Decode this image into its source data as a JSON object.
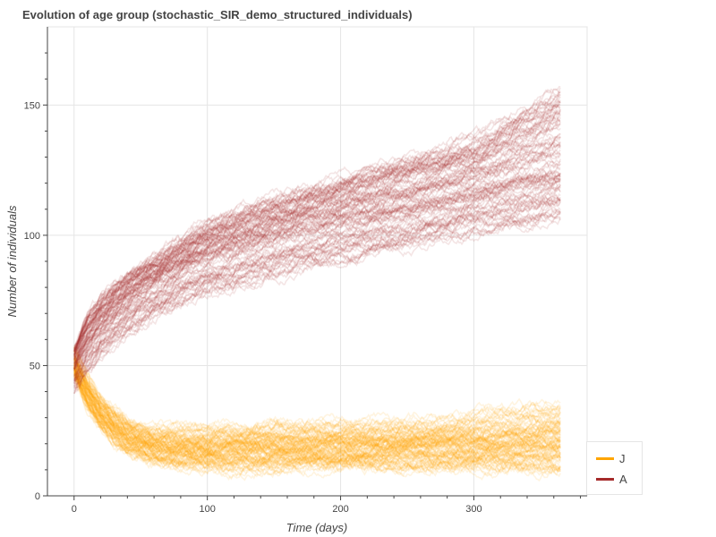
{
  "chart_data": {
    "type": "line",
    "title": "Evolution of age group (stochastic_SIR_demo_structured_individuals)",
    "xlabel": "Time (days)",
    "ylabel": "Number of individuals",
    "xlim": [
      -20,
      385
    ],
    "ylim": [
      0,
      180
    ],
    "xticks": [
      0,
      100,
      200,
      300
    ],
    "yticks": [
      0,
      50,
      100,
      150
    ],
    "grid": true,
    "legend_position": "bottom-right",
    "n_runs_per_series": 100,
    "series": [
      {
        "name": "J",
        "color": "#ffa500",
        "x": [
          0,
          10,
          20,
          30,
          40,
          50,
          60,
          75,
          100,
          150,
          200,
          250,
          300,
          365
        ],
        "y_mean": [
          50,
          40,
          32,
          27,
          23,
          21,
          19.5,
          18.5,
          18,
          18.5,
          19,
          19.5,
          20.5,
          21
        ],
        "y_low": [
          46,
          33,
          25,
          20,
          16,
          14,
          12,
          11,
          10,
          10,
          10,
          10,
          10,
          9
        ],
        "y_high": [
          58,
          47,
          39,
          34,
          30,
          28,
          27,
          27,
          28,
          29,
          30,
          30,
          32,
          38
        ]
      },
      {
        "name": "A",
        "color": "#a52a2a",
        "x": [
          0,
          10,
          20,
          30,
          40,
          50,
          60,
          75,
          100,
          150,
          200,
          250,
          300,
          365
        ],
        "y_mean": [
          50,
          60,
          67,
          72,
          76,
          80,
          83,
          87,
          93,
          101,
          107,
          112,
          118,
          125
        ],
        "y_low": [
          38,
          46,
          52,
          56,
          60,
          63,
          66,
          70,
          75,
          82,
          87,
          93,
          98,
          104
        ],
        "y_high": [
          58,
          70,
          77,
          82,
          86,
          89,
          92,
          98,
          106,
          116,
          124,
          132,
          140,
          162
        ]
      }
    ]
  }
}
